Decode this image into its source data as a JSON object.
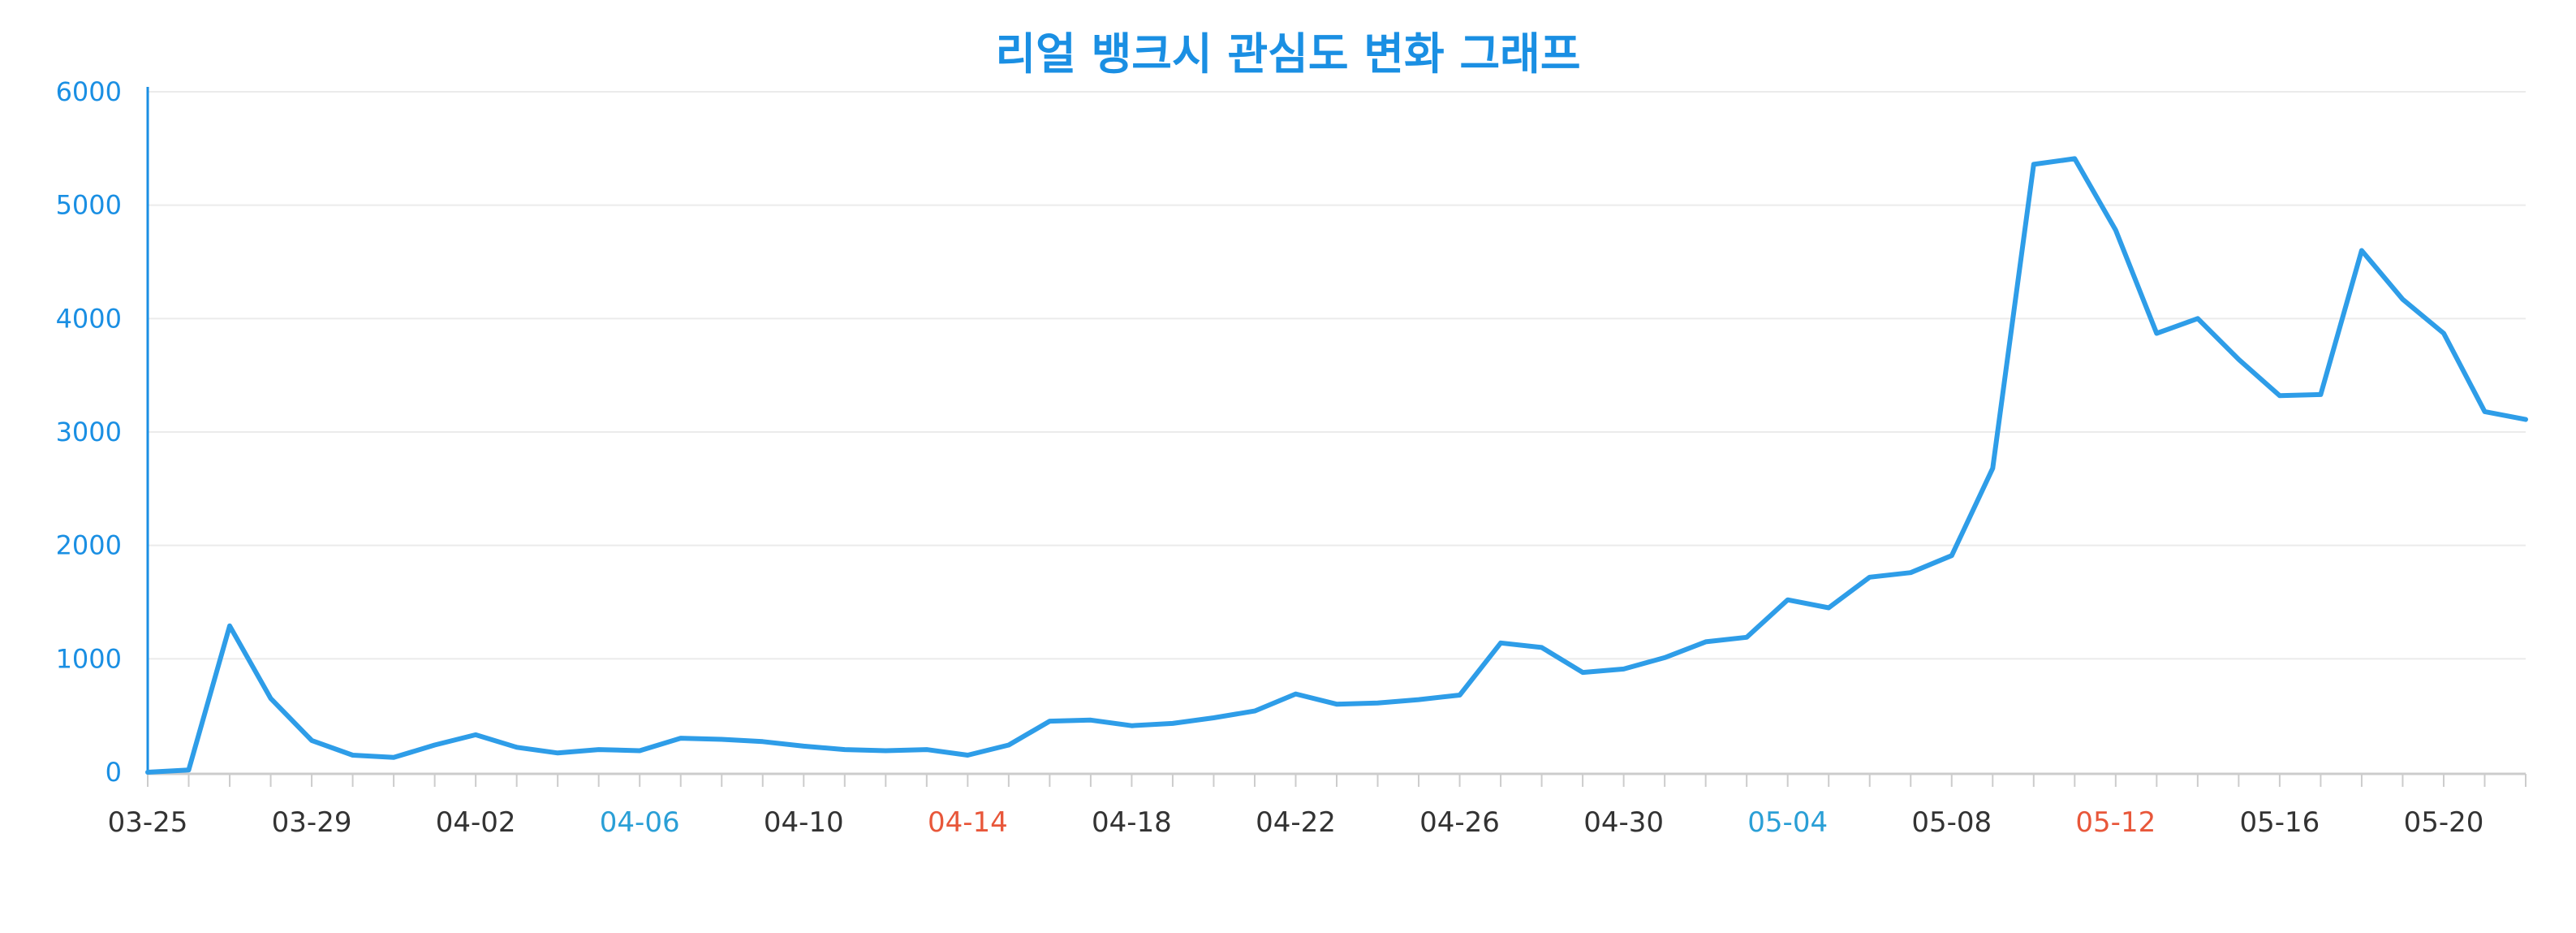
{
  "chart_data": {
    "type": "line",
    "title": "리얼 뱅크시 관심도 변화 그래프",
    "xlabel": "",
    "ylabel": "",
    "ylim": [
      0,
      6000
    ],
    "y_ticks": [
      0,
      1000,
      2000,
      3000,
      4000,
      5000,
      6000
    ],
    "grid": true,
    "legend": "none",
    "x": [
      "03-25",
      "03-26",
      "03-27",
      "03-28",
      "03-29",
      "03-30",
      "03-31",
      "04-01",
      "04-02",
      "04-03",
      "04-04",
      "04-05",
      "04-06",
      "04-07",
      "04-08",
      "04-09",
      "04-10",
      "04-11",
      "04-12",
      "04-13",
      "04-14",
      "04-15",
      "04-16",
      "04-17",
      "04-18",
      "04-19",
      "04-20",
      "04-21",
      "04-22",
      "04-23",
      "04-24",
      "04-25",
      "04-26",
      "04-27",
      "04-28",
      "04-29",
      "04-30",
      "05-01",
      "05-02",
      "05-03",
      "05-04",
      "05-05",
      "05-06",
      "05-07",
      "05-08",
      "05-09",
      "05-10",
      "05-11",
      "05-12",
      "05-13",
      "05-14",
      "05-15",
      "05-16",
      "05-17",
      "05-18",
      "05-19",
      "05-20",
      "05-21",
      "05-22"
    ],
    "x_tick_labels": [
      "03-25",
      "03-29",
      "04-02",
      "04-06",
      "04-10",
      "04-14",
      "04-18",
      "04-22",
      "04-26",
      "04-30",
      "05-04",
      "05-08",
      "05-12",
      "05-16",
      "05-20"
    ],
    "highlight_labels": {
      "04-06": "#2a9fd6",
      "05-04": "#2a9fd6",
      "04-14": "#e8573a",
      "05-12": "#e8573a"
    },
    "series": [
      {
        "values": [
          0,
          20,
          1290,
          650,
          280,
          150,
          130,
          240,
          330,
          220,
          170,
          200,
          190,
          300,
          290,
          270,
          230,
          200,
          190,
          200,
          150,
          240,
          450,
          460,
          410,
          430,
          480,
          540,
          690,
          600,
          610,
          640,
          680,
          1140,
          1100,
          880,
          910,
          1010,
          1150,
          1190,
          1520,
          1450,
          1720,
          1760,
          1910,
          2680,
          5360,
          5410,
          4780,
          3870,
          4000,
          3640,
          3320,
          3330,
          4600,
          4170,
          3870,
          3180,
          3110
        ]
      }
    ],
    "colors": {
      "title": "#1a8fe3",
      "line": "#2e9de8",
      "y_axis": "#1a8fe3",
      "y_tick_text": "#1a8fe3",
      "x_tick_text": "#333333",
      "grid": "#ebebeb",
      "x_axis": "#cccccc"
    }
  }
}
